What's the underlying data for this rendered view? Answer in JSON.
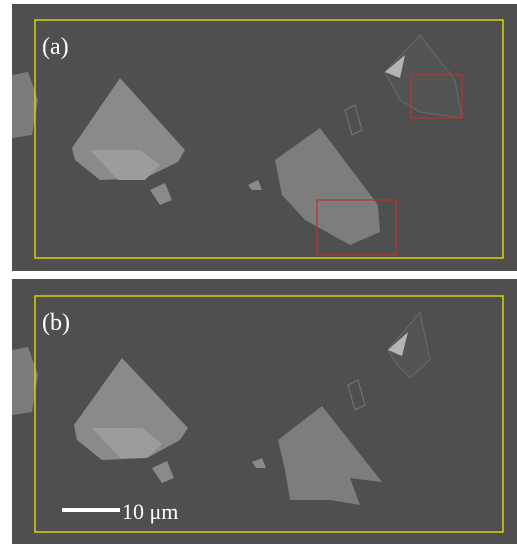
{
  "panels": [
    {
      "label": "(a)"
    },
    {
      "label": "(b)",
      "scale_bar": "10 μm"
    }
  ]
}
